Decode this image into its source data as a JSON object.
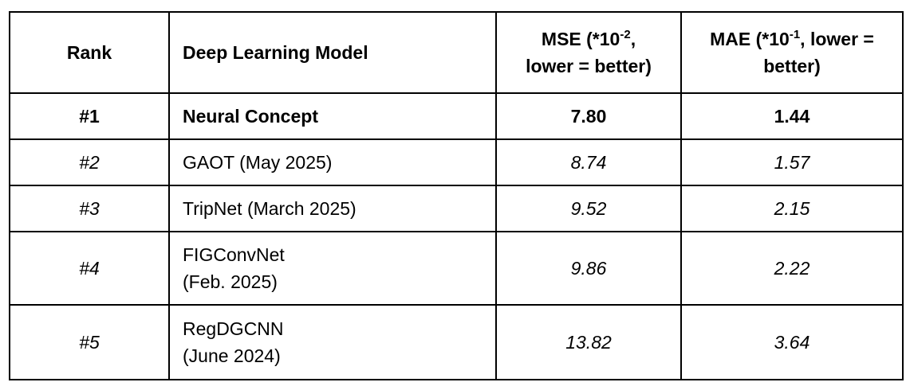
{
  "table": {
    "headers": {
      "rank": "Rank",
      "model": "Deep Learning Model",
      "mse": {
        "prefix": "MSE (*10",
        "exponent": "-2",
        "suffix": ",",
        "line2": "lower = better)"
      },
      "mae": {
        "prefix": "MAE (*10",
        "exponent": "-1",
        "suffix": ", lower =",
        "line2": "better)"
      }
    },
    "rows": [
      {
        "rank": "#1",
        "model_line1": "Neural Concept",
        "model_line2": "",
        "mse": "7.80",
        "mae": "1.44"
      },
      {
        "rank": "#2",
        "model_line1": "GAOT (May 2025)",
        "model_line2": "",
        "mse": "8.74",
        "mae": "1.57"
      },
      {
        "rank": "#3",
        "model_line1": "TripNet (March 2025)",
        "model_line2": "",
        "mse": "9.52",
        "mae": "2.15"
      },
      {
        "rank": "#4",
        "model_line1": "FIGConvNet",
        "model_line2": "(Feb. 2025)",
        "mse": "9.86",
        "mae": "2.22"
      },
      {
        "rank": "#5",
        "model_line1": "RegDGCNN",
        "model_line2": "(June 2024)",
        "mse": "13.82",
        "mae": "3.64"
      }
    ]
  }
}
